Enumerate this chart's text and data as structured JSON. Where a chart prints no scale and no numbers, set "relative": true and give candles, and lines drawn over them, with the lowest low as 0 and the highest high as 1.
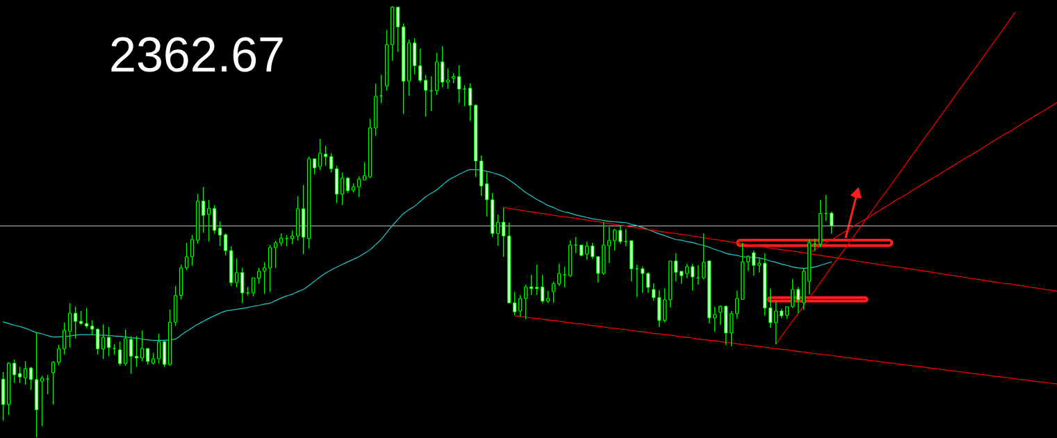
{
  "chart_data": {
    "type": "candlestick",
    "title": "2362.67",
    "relative": true,
    "categories": [
      null,
      null,
      null,
      null,
      null,
      null,
      null,
      null,
      null,
      null,
      null,
      null,
      null,
      null,
      null,
      null,
      null,
      null,
      null,
      null,
      null,
      null,
      null,
      null,
      null,
      null,
      null,
      null,
      null,
      null,
      null,
      null,
      null,
      null,
      null,
      null,
      null,
      null,
      null,
      null,
      null,
      null,
      null,
      null,
      null,
      null,
      null,
      null,
      null,
      null,
      null,
      null,
      null,
      null,
      null,
      null,
      null,
      null,
      null,
      null,
      null,
      null,
      null,
      null,
      null,
      null,
      null,
      null,
      null,
      null,
      null,
      null,
      null,
      null,
      null,
      null,
      null,
      null,
      null,
      null,
      null,
      null,
      null,
      null,
      null,
      null,
      null,
      null,
      null,
      null,
      null,
      null,
      null,
      null,
      null,
      null,
      null,
      null,
      null,
      null,
      null,
      null,
      null,
      null,
      null,
      null,
      null,
      null,
      null,
      null,
      null,
      null,
      null,
      null,
      null,
      null,
      null,
      null,
      null,
      null,
      null,
      null,
      null,
      null,
      null,
      null,
      null,
      null,
      null,
      null,
      null,
      null,
      null,
      null,
      null,
      null,
      null,
      null,
      null,
      null,
      null,
      null,
      null,
      null,
      null,
      null,
      null,
      null,
      null,
      null,
      null,
      null,
      null,
      null,
      null,
      null,
      null,
      null,
      null,
      null,
      null,
      null,
      null,
      null,
      null,
      null,
      null,
      null,
      null,
      null,
      null,
      null,
      null,
      null,
      null,
      null,
      null,
      null,
      null,
      null,
      null,
      null,
      null,
      null,
      null,
      null,
      null,
      null,
      null,
      null,
      null
    ],
    "ohlc": [
      [
        0.135,
        0.151,
        0.039,
        0.076
      ],
      [
        0.076,
        0.174,
        0.052,
        0.172
      ],
      [
        0.172,
        0.18,
        0.127,
        0.145
      ],
      [
        0.148,
        0.163,
        0.126,
        0.14
      ],
      [
        0.138,
        0.176,
        0.122,
        0.159
      ],
      [
        0.161,
        0.163,
        0.11,
        0.134
      ],
      [
        0.134,
        0.243,
        0,
        0.064
      ],
      [
        0.13,
        0.143,
        0.026,
        0.137
      ],
      [
        0.135,
        0.145,
        0.1,
        0.135
      ],
      [
        0.15,
        0.177,
        0.076,
        0.174
      ],
      [
        0.174,
        0.214,
        0.167,
        0.205
      ],
      [
        0.205,
        0.266,
        0.192,
        0.248
      ],
      [
        0.246,
        0.311,
        0.208,
        0.288
      ],
      [
        0.288,
        0.303,
        0.229,
        0.269
      ],
      [
        0.269,
        0.293,
        0.261,
        0.264
      ],
      [
        0.264,
        0.3,
        0.253,
        0.258
      ],
      [
        0.258,
        0.272,
        0.238,
        0.251
      ],
      [
        0.251,
        0.253,
        0.192,
        0.205
      ],
      [
        0.205,
        0.262,
        0.182,
        0.232
      ],
      [
        0.232,
        0.256,
        0.188,
        0.208
      ],
      [
        0.206,
        0.216,
        0.192,
        0.206
      ],
      [
        0.203,
        0.222,
        0.166,
        0.171
      ],
      [
        0.171,
        0.25,
        0.166,
        0.229
      ],
      [
        0.227,
        0.235,
        0.147,
        0.188
      ],
      [
        0.188,
        0.235,
        0.163,
        0.184
      ],
      [
        0.184,
        0.248,
        0.176,
        0.206
      ],
      [
        0.206,
        0.206,
        0.169,
        0.176
      ],
      [
        0.172,
        0.196,
        0.169,
        0.182
      ],
      [
        0.182,
        0.24,
        0.171,
        0.222
      ],
      [
        0.222,
        0.224,
        0.163,
        0.169
      ],
      [
        0.169,
        0.296,
        0.166,
        0.267
      ],
      [
        0.267,
        0.351,
        0.259,
        0.329
      ],
      [
        0.329,
        0.401,
        0.32,
        0.393
      ],
      [
        0.393,
        0.451,
        0.388,
        0.419
      ],
      [
        0.419,
        0.469,
        0.398,
        0.459
      ],
      [
        0.457,
        0.565,
        0.449,
        0.548
      ],
      [
        0.548,
        0.581,
        0.475,
        0.515
      ],
      [
        0.517,
        0.551,
        0.454,
        0.531
      ],
      [
        0.531,
        0.539,
        0.472,
        0.48
      ],
      [
        0.485,
        0.501,
        0.443,
        0.469
      ],
      [
        0.47,
        0.473,
        0.422,
        0.433
      ],
      [
        0.433,
        0.443,
        0.351,
        0.359
      ],
      [
        0.359,
        0.415,
        0.348,
        0.382
      ],
      [
        0.382,
        0.393,
        0.311,
        0.335
      ],
      [
        0.335,
        0.349,
        0.329,
        0.335
      ],
      [
        0.335,
        0.37,
        0.327,
        0.37
      ],
      [
        0.369,
        0.393,
        0.356,
        0.385
      ],
      [
        0.386,
        0.406,
        0.333,
        0.393
      ],
      [
        0.393,
        0.446,
        0.337,
        0.44
      ],
      [
        0.44,
        0.456,
        0.393,
        0.451
      ],
      [
        0.451,
        0.473,
        0.444,
        0.462
      ],
      [
        0.461,
        0.469,
        0.443,
        0.461
      ],
      [
        0.461,
        0.48,
        0.448,
        0.467
      ],
      [
        0.467,
        0.559,
        0.456,
        0.53
      ],
      [
        0.53,
        0.585,
        0.425,
        0.464
      ],
      [
        0.461,
        0.651,
        0.438,
        0.646
      ],
      [
        0.646,
        0.646,
        0.61,
        0.625
      ],
      [
        0.628,
        0.692,
        0.62,
        0.659
      ],
      [
        0.657,
        0.676,
        0.63,
        0.651
      ],
      [
        0.651,
        0.659,
        0.614,
        0.623
      ],
      [
        0.623,
        0.63,
        0.543,
        0.564
      ],
      [
        0.564,
        0.614,
        0.539,
        0.601
      ],
      [
        0.601,
        0.604,
        0.567,
        0.572
      ],
      [
        0.573,
        0.589,
        0.568,
        0.581
      ],
      [
        0.581,
        0.605,
        0.557,
        0.599
      ],
      [
        0.597,
        0.638,
        0.597,
        0.607
      ],
      [
        0.604,
        0.739,
        0.601,
        0.718
      ],
      [
        0.718,
        0.82,
        0.699,
        0.791
      ],
      [
        0.792,
        0.841,
        0.775,
        0.792
      ],
      [
        0.815,
        0.945,
        0.804,
        0.911
      ],
      [
        0.911,
        1,
        0.874,
        0.998
      ],
      [
        0.998,
        0.998,
        0.894,
        0.952
      ],
      [
        0.952,
        0.96,
        0.75,
        0.826
      ],
      [
        0.826,
        0.923,
        0.792,
        0.915
      ],
      [
        0.915,
        0.926,
        0.842,
        0.862
      ],
      [
        0.862,
        0.902,
        0.823,
        0.828
      ],
      [
        0.828,
        0.841,
        0.744,
        0.805
      ],
      [
        0.804,
        0.837,
        0.757,
        0.804
      ],
      [
        0.804,
        0.892,
        0.794,
        0.871
      ],
      [
        0.871,
        0.907,
        0.812,
        0.824
      ],
      [
        0.824,
        0.855,
        0.808,
        0.829
      ],
      [
        0.833,
        0.845,
        0.821,
        0.837
      ],
      [
        0.837,
        0.863,
        0.775,
        0.808
      ],
      [
        0.808,
        0.816,
        0.768,
        0.808
      ],
      [
        0.81,
        0.821,
        0.734,
        0.77
      ],
      [
        0.77,
        0.773,
        0.604,
        0.641
      ],
      [
        0.641,
        0.654,
        0.56,
        0.583
      ],
      [
        0.588,
        0.614,
        0.512,
        0.551
      ],
      [
        0.551,
        0.567,
        0.465,
        0.473
      ],
      [
        0.473,
        0.517,
        0.444,
        0.499
      ],
      [
        0.499,
        0.533,
        0.419,
        0.467
      ],
      [
        0.467,
        0.498,
        0.311,
        0.312
      ],
      [
        0.312,
        0.337,
        0.283,
        0.291
      ],
      [
        0.293,
        0.33,
        0.28,
        0.322
      ],
      [
        0.322,
        0.354,
        0.274,
        0.349
      ],
      [
        0.349,
        0.377,
        0.33,
        0.345
      ],
      [
        0.348,
        0.401,
        0.33,
        0.345
      ],
      [
        0.349,
        0.377,
        0.311,
        0.316
      ],
      [
        0.316,
        0.34,
        0.311,
        0.322
      ],
      [
        0.338,
        0.362,
        0.312,
        0.356
      ],
      [
        0.356,
        0.403,
        0.351,
        0.38
      ],
      [
        0.377,
        0.395,
        0.348,
        0.377
      ],
      [
        0.375,
        0.457,
        0.372,
        0.446
      ],
      [
        0.446,
        0.465,
        0.427,
        0.446
      ],
      [
        0.446,
        0.446,
        0.42,
        0.422
      ],
      [
        0.425,
        0.454,
        0.412,
        0.444
      ],
      [
        0.444,
        0.451,
        0.414,
        0.419
      ],
      [
        0.419,
        0.419,
        0.359,
        0.38
      ],
      [
        0.38,
        0.499,
        0.377,
        0.446
      ],
      [
        0.444,
        0.488,
        0.404,
        0.457
      ],
      [
        0.456,
        0.483,
        0.433,
        0.481
      ],
      [
        0.48,
        0.491,
        0.449,
        0.454
      ],
      [
        0.454,
        0.483,
        0.443,
        0.454
      ],
      [
        0.456,
        0.456,
        0.362,
        0.391
      ],
      [
        0.391,
        0.401,
        0.325,
        0.391
      ],
      [
        0.391,
        0.396,
        0.335,
        0.38
      ],
      [
        0.38,
        0.383,
        0.335,
        0.348
      ],
      [
        0.343,
        0.357,
        0.317,
        0.324
      ],
      [
        0.324,
        0.341,
        0.256,
        0.271
      ],
      [
        0.271,
        0.346,
        0.266,
        0.319
      ],
      [
        0.319,
        0.409,
        0.301,
        0.409
      ],
      [
        0.409,
        0.427,
        0.362,
        0.383
      ],
      [
        0.385,
        0.385,
        0.356,
        0.375
      ],
      [
        0.38,
        0.403,
        0.369,
        0.396
      ],
      [
        0.396,
        0.403,
        0.34,
        0.372
      ],
      [
        0.37,
        0.399,
        0.354,
        0.37
      ],
      [
        0.37,
        0.473,
        0.366,
        0.406
      ],
      [
        0.409,
        0.411,
        0.264,
        0.277
      ],
      [
        0.277,
        0.303,
        0.245,
        0.285
      ],
      [
        0.29,
        0.306,
        0.261,
        0.304
      ],
      [
        0.304,
        0.306,
        0.214,
        0.242
      ],
      [
        0.242,
        0.293,
        0.211,
        0.287
      ],
      [
        0.287,
        0.34,
        0.275,
        0.322
      ],
      [
        0.32,
        0.451,
        0.32,
        0.407
      ],
      [
        0.407,
        0.422,
        0.386,
        0.42
      ],
      [
        0.428,
        0.433,
        0.375,
        0.399
      ],
      [
        0.399,
        0.415,
        0.382,
        0.404
      ],
      [
        0.404,
        0.427,
        0.282,
        0.3
      ],
      [
        0.3,
        0.346,
        0.254,
        0.266
      ],
      [
        0.266,
        0.314,
        0.216,
        0.293
      ],
      [
        0.293,
        0.298,
        0.277,
        0.282
      ],
      [
        0.283,
        0.304,
        0.275,
        0.303
      ],
      [
        0.303,
        0.367,
        0.3,
        0.343
      ],
      [
        0.343,
        0.349,
        0.288,
        0.319
      ],
      [
        0.312,
        0.393,
        0.296,
        0.385
      ],
      [
        0.362,
        0.459,
        0.332,
        0.452
      ],
      [
        0.449,
        0.461,
        0.432,
        0.449
      ],
      [
        0.448,
        0.551,
        0.441,
        0.519
      ],
      [
        0.519,
        0.562,
        0.502,
        0.519
      ],
      [
        0.52,
        0.523,
        0.472,
        0.491
      ],
      null,
      null,
      null,
      null,
      null,
      null,
      null,
      null,
      null,
      null,
      null,
      null,
      null,
      null,
      null,
      null,
      null,
      null,
      null,
      null,
      null,
      null,
      null,
      null,
      null,
      null,
      null,
      null,
      null,
      null,
      null,
      null,
      null,
      null,
      null,
      null,
      null,
      null,
      null,
      null,
      null
    ],
    "series": [
      {
        "type": "line",
        "color": "#1ecbcb",
        "values": [
          0.268,
          0.264,
          0.26,
          0.257,
          0.253,
          0.248,
          0.243,
          0.24,
          0.236,
          0.233,
          0.233,
          0.234,
          0.235,
          0.237,
          0.238,
          0.238,
          0.238,
          0.237,
          0.237,
          0.236,
          0.235,
          0.234,
          0.233,
          0.231,
          0.23,
          0.228,
          0.226,
          0.225,
          0.225,
          0.225,
          0.226,
          0.228,
          0.237,
          0.246,
          0.254,
          0.262,
          0.269,
          0.276,
          0.282,
          0.288,
          0.293,
          0.295,
          0.297,
          0.299,
          0.301,
          0.304,
          0.306,
          0.309,
          0.311,
          0.317,
          0.323,
          0.328,
          0.332,
          0.338,
          0.343,
          0.352,
          0.362,
          0.372,
          0.381,
          0.388,
          0.395,
          0.401,
          0.407,
          0.413,
          0.419,
          0.427,
          0.435,
          0.447,
          0.459,
          0.475,
          0.491,
          0.505,
          0.519,
          0.528,
          0.536,
          0.547,
          0.558,
          0.566,
          0.574,
          0.585,
          0.596,
          0.603,
          0.61,
          0.616,
          0.621,
          0.621,
          0.62,
          0.617,
          0.614,
          0.61,
          0.605,
          0.597,
          0.588,
          0.578,
          0.568,
          0.56,
          0.552,
          0.545,
          0.538,
          0.533,
          0.527,
          0.523,
          0.52,
          0.516,
          0.513,
          0.51,
          0.507,
          0.505,
          0.503,
          0.501,
          0.5,
          0.499,
          0.498,
          0.494,
          0.491,
          0.487,
          0.482,
          0.477,
          0.472,
          0.468,
          0.463,
          0.459,
          0.457,
          0.454,
          0.452,
          0.448,
          0.445,
          0.441,
          0.436,
          0.432,
          0.427,
          0.424,
          0.422,
          0.419,
          0.418,
          0.417,
          0.416,
          0.413,
          0.409,
          0.406,
          0.402,
          0.399,
          0.395,
          0.393,
          0.392,
          0.393,
          0.395,
          0.399,
          0.403,
          0.407,
          null,
          null,
          null,
          null,
          null,
          null,
          null,
          null,
          null,
          null,
          null,
          null,
          null,
          null,
          null,
          null,
          null,
          null,
          null,
          null,
          null,
          null,
          null,
          null,
          null,
          null,
          null,
          null,
          null,
          null,
          null,
          null,
          null,
          null,
          null,
          null,
          null,
          null,
          null,
          null,
          null
        ]
      },
      {
        "type": "line",
        "color": "#ff0000",
        "values": [
          null,
          null,
          null,
          null,
          null,
          null,
          null,
          null,
          null,
          null,
          null,
          null,
          null,
          null,
          null,
          null,
          null,
          null,
          null,
          null,
          null,
          null,
          null,
          null,
          null,
          null,
          null,
          null,
          null,
          null,
          null,
          null,
          null,
          null,
          null,
          null,
          null,
          null,
          null,
          null,
          null,
          null,
          null,
          null,
          null,
          null,
          null,
          null,
          null,
          null,
          null,
          null,
          null,
          null,
          null,
          null,
          null,
          null,
          null,
          null,
          null,
          null,
          null,
          null,
          null,
          null,
          null,
          null,
          null,
          null,
          null,
          null,
          null,
          null,
          null,
          null,
          null,
          null,
          null,
          null,
          null,
          null,
          null,
          null,
          null,
          null,
          null,
          null,
          null,
          null,
          0.533,
          0.531,
          0.529,
          0.527,
          0.525,
          0.523,
          0.521,
          0.519,
          0.517,
          0.515,
          0.513,
          0.512,
          0.51,
          0.508,
          0.506,
          0.504,
          0.502,
          0.5,
          0.498,
          0.496,
          0.494,
          0.492,
          0.49,
          0.488,
          0.486,
          0.484,
          0.482,
          0.48,
          0.478,
          0.476,
          0.474,
          0.473,
          0.471,
          0.469,
          0.467,
          0.465,
          0.463,
          0.461,
          0.459,
          0.457,
          0.455,
          0.453,
          0.451,
          0.449,
          0.447,
          0.445,
          0.443,
          0.441,
          0.439,
          0.437,
          0.435,
          0.434,
          0.432,
          0.43,
          0.428,
          0.426,
          0.424,
          0.422,
          0.42,
          0.418,
          0.416,
          0.414,
          0.412,
          0.41,
          0.408,
          0.406,
          0.404,
          0.402,
          0.4,
          0.398,
          0.396,
          0.395,
          0.393,
          0.391,
          0.389,
          0.387,
          0.385,
          0.383,
          0.381,
          0.379,
          0.377,
          0.375,
          0.373,
          0.371,
          0.369,
          0.367,
          0.365,
          0.363,
          0.361,
          0.359,
          0.357,
          0.356,
          0.354,
          0.352,
          0.35,
          0.348,
          0.346,
          0.344,
          0.342,
          0.34,
          0.338
        ]
      },
      {
        "type": "line",
        "color": "#ff0000",
        "values": [
          null,
          null,
          null,
          null,
          null,
          null,
          null,
          null,
          null,
          null,
          null,
          null,
          null,
          null,
          null,
          null,
          null,
          null,
          null,
          null,
          null,
          null,
          null,
          null,
          null,
          null,
          null,
          null,
          null,
          null,
          null,
          null,
          null,
          null,
          null,
          null,
          null,
          null,
          null,
          null,
          null,
          null,
          null,
          null,
          null,
          null,
          null,
          null,
          null,
          null,
          null,
          null,
          null,
          null,
          null,
          null,
          null,
          null,
          null,
          null,
          null,
          null,
          null,
          null,
          null,
          null,
          null,
          null,
          null,
          null,
          null,
          null,
          null,
          null,
          null,
          null,
          null,
          null,
          null,
          null,
          null,
          null,
          null,
          null,
          null,
          null,
          null,
          null,
          null,
          null,
          null,
          null,
          0.282,
          0.28,
          0.279,
          0.277,
          0.276,
          0.274,
          0.272,
          0.271,
          0.269,
          0.267,
          0.266,
          0.264,
          0.263,
          0.261,
          0.259,
          0.258,
          0.256,
          0.254,
          0.253,
          0.251,
          0.25,
          0.248,
          0.246,
          0.245,
          0.243,
          0.241,
          0.24,
          0.238,
          0.237,
          0.235,
          0.233,
          0.232,
          0.23,
          0.228,
          0.227,
          0.225,
          0.224,
          0.222,
          0.22,
          0.219,
          0.217,
          0.215,
          0.214,
          0.212,
          0.211,
          0.209,
          0.207,
          0.206,
          0.204,
          0.203,
          0.201,
          0.199,
          0.198,
          0.196,
          0.194,
          0.193,
          0.191,
          0.19,
          0.188,
          0.186,
          0.185,
          0.183,
          0.181,
          0.18,
          0.178,
          0.177,
          0.175,
          0.173,
          0.172,
          0.17,
          0.168,
          0.167,
          0.165,
          0.164,
          0.162,
          0.16,
          0.159,
          0.157,
          0.155,
          0.154,
          0.152,
          0.151,
          0.149,
          0.147,
          0.146,
          0.144,
          0.142,
          0.141,
          0.139,
          0.138,
          0.136,
          0.134,
          0.133,
          0.131,
          0.129,
          0.128,
          0.126,
          0.125,
          0.123
        ]
      },
      {
        "type": "line",
        "color": "#ff0000",
        "values": [
          null,
          null,
          null,
          null,
          null,
          null,
          null,
          null,
          null,
          null,
          null,
          null,
          null,
          null,
          null,
          null,
          null,
          null,
          null,
          null,
          null,
          null,
          null,
          null,
          null,
          null,
          null,
          null,
          null,
          null,
          null,
          null,
          null,
          null,
          null,
          null,
          null,
          null,
          null,
          null,
          null,
          null,
          null,
          null,
          null,
          null,
          null,
          null,
          null,
          null,
          null,
          null,
          null,
          null,
          null,
          null,
          null,
          null,
          null,
          null,
          null,
          null,
          null,
          null,
          null,
          null,
          null,
          null,
          null,
          null,
          null,
          null,
          null,
          null,
          null,
          null,
          null,
          null,
          null,
          null,
          null,
          null,
          null,
          null,
          null,
          null,
          null,
          null,
          null,
          null,
          null,
          null,
          null,
          null,
          null,
          null,
          null,
          null,
          null,
          null,
          null,
          null,
          null,
          null,
          null,
          null,
          null,
          null,
          null,
          null,
          null,
          null,
          null,
          null,
          null,
          null,
          null,
          null,
          null,
          null,
          null,
          null,
          null,
          null,
          null,
          null,
          null,
          null,
          null,
          null,
          null,
          null,
          null,
          null,
          null,
          null,
          null,
          null,
          null,
          0.216,
          0.234,
          0.252,
          0.27,
          0.287,
          0.305,
          0.323,
          0.341,
          0.359,
          0.377,
          0.395,
          0.413,
          0.43,
          0.448,
          0.466,
          0.484,
          0.502,
          0.52,
          0.538,
          0.556,
          0.573,
          0.591,
          0.609,
          0.627,
          0.645,
          0.663,
          0.681,
          0.699,
          0.716,
          0.734,
          0.752,
          0.77,
          0.788,
          0.806,
          0.824,
          0.842,
          0.859,
          0.877,
          0.895,
          0.913,
          0.931,
          0.949,
          0.967,
          0.985,
          null,
          null,
          null,
          null,
          null,
          null,
          null,
          null
        ]
      },
      {
        "type": "line",
        "color": "#ff0000",
        "values": [
          null,
          null,
          null,
          null,
          null,
          null,
          null,
          null,
          null,
          null,
          null,
          null,
          null,
          null,
          null,
          null,
          null,
          null,
          null,
          null,
          null,
          null,
          null,
          null,
          null,
          null,
          null,
          null,
          null,
          null,
          null,
          null,
          null,
          null,
          null,
          null,
          null,
          null,
          null,
          null,
          null,
          null,
          null,
          null,
          null,
          null,
          null,
          null,
          null,
          null,
          null,
          null,
          null,
          null,
          null,
          null,
          null,
          null,
          null,
          null,
          null,
          null,
          null,
          null,
          null,
          null,
          null,
          null,
          null,
          null,
          null,
          null,
          null,
          null,
          null,
          null,
          null,
          null,
          null,
          null,
          null,
          null,
          null,
          null,
          null,
          null,
          null,
          null,
          null,
          null,
          null,
          null,
          null,
          null,
          null,
          null,
          null,
          null,
          null,
          null,
          null,
          null,
          null,
          null,
          null,
          null,
          null,
          null,
          null,
          null,
          null,
          null,
          null,
          null,
          null,
          null,
          null,
          null,
          null,
          null,
          null,
          null,
          null,
          null,
          null,
          null,
          null,
          null,
          null,
          null,
          null,
          null,
          null,
          null,
          null,
          null,
          null,
          null,
          null,
          null,
          null,
          null,
          null,
          null,
          null,
          0.427,
          0.435,
          0.443,
          0.451,
          0.458,
          0.466,
          0.474,
          0.482,
          0.49,
          0.498,
          0.505,
          0.513,
          0.521,
          0.529,
          0.537,
          0.545,
          0.553,
          0.56,
          0.568,
          0.576,
          0.584,
          0.592,
          0.6,
          0.607,
          0.615,
          0.623,
          0.631,
          0.639,
          0.647,
          0.654,
          0.662,
          0.67,
          0.678,
          0.686,
          0.694,
          0.702,
          0.709,
          0.717,
          0.725,
          0.733,
          0.741,
          0.749,
          0.756,
          0.764,
          0.772,
          0.78
        ]
      }
    ],
    "ref_lines": [
      {
        "axis": "y",
        "value": 0.491,
        "color": "#c0c0c0"
      }
    ]
  }
}
